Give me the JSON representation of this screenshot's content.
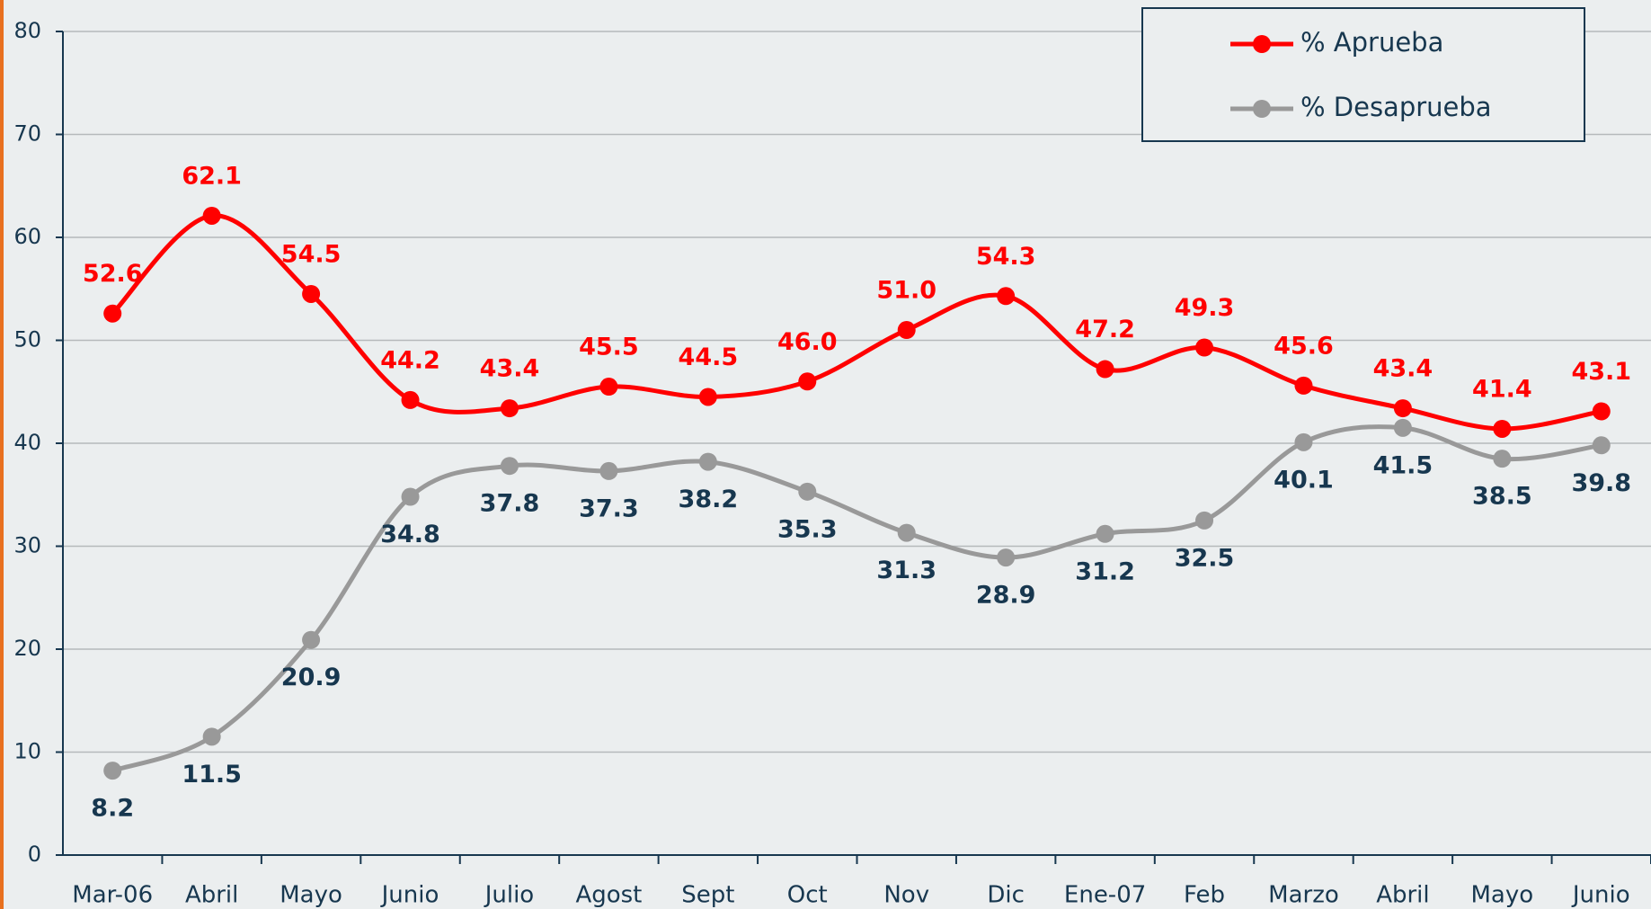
{
  "chart_data": {
    "type": "line",
    "categories": [
      "Mar-06",
      "Abril",
      "Mayo",
      "Junio",
      "Julio",
      "Agost",
      "Sept",
      "Oct",
      "Nov",
      "Dic",
      "Ene-07",
      "Feb",
      "Marzo",
      "Abril",
      "Mayo",
      "Junio"
    ],
    "series": [
      {
        "name": "% Aprueba",
        "color": "#ff0000",
        "label_color": "#ff0000",
        "values": [
          52.6,
          62.1,
          54.5,
          44.2,
          43.4,
          45.5,
          44.5,
          46.0,
          51.0,
          54.3,
          47.2,
          49.3,
          45.6,
          43.4,
          41.4,
          43.1
        ],
        "value_labels": [
          "52.6",
          "62.1",
          "54.5",
          "44.2",
          "43.4",
          "45.5",
          "44.5",
          "46.0",
          "51.0",
          "54.3",
          "47.2",
          "49.3",
          "45.6",
          "43.4",
          "41.4",
          "43.1"
        ]
      },
      {
        "name": "% Desaprueba",
        "color": "#999999",
        "label_color": "#17374f",
        "values": [
          8.2,
          11.5,
          20.9,
          34.8,
          37.8,
          37.3,
          38.2,
          35.3,
          31.3,
          28.9,
          31.2,
          32.5,
          40.1,
          41.5,
          38.5,
          39.8
        ],
        "value_labels": [
          "8.2",
          "11.5",
          "20.9",
          "34.8",
          "37.8",
          "37.3",
          "38.2",
          "35.3",
          "31.3",
          "28.9",
          "31.2",
          "32.5",
          "40.1",
          "41.5",
          "38.5",
          "39.8"
        ]
      }
    ],
    "ylim": [
      0,
      80
    ],
    "yticks": [
      0,
      10,
      20,
      30,
      40,
      50,
      60,
      70,
      80
    ],
    "grid": true,
    "legend": "top-right"
  }
}
